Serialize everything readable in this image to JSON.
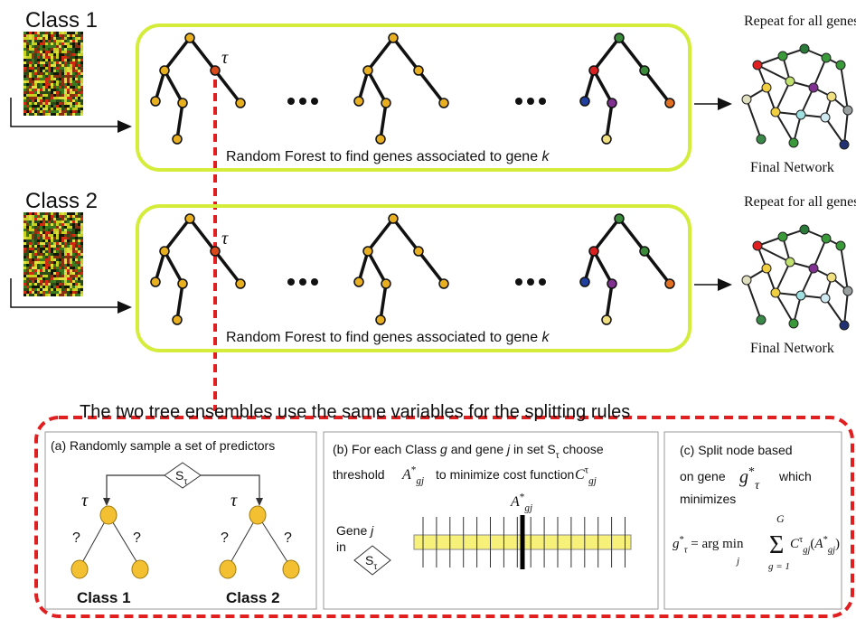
{
  "classes": [
    {
      "label": "Class 1",
      "tau": "τ",
      "caption": "Random Forest to find genes associated to gene ",
      "caption_var": "k",
      "repeat": "Repeat for all genes",
      "network": "Final Network"
    },
    {
      "label": "Class 2",
      "tau": "τ",
      "caption": "Random Forest to find genes associated to gene ",
      "caption_var": "k",
      "repeat": "Repeat for all genes",
      "network": "Final Network"
    }
  ],
  "shared_note": "The two tree ensembles use the same variables for the splitting rules",
  "panel_a": {
    "title": "(a) Randomly sample a set of predictors",
    "set_symbol": "S",
    "set_sub": "τ",
    "tau": "τ",
    "question": "?",
    "class_labels": [
      "Class 1",
      "Class 2"
    ]
  },
  "panel_b": {
    "intro": "(b) For each Class ",
    "g": "g",
    "and_gene": " and gene ",
    "j": "j",
    "in_set": " in set ",
    "set_symbol": "S",
    "set_sub": "τ",
    "choose": " choose",
    "threshold": "threshold",
    "A": "A",
    "star": "*",
    "gj": "gj",
    "minimize": "to minimize cost function",
    "C": "C",
    "tau": "τ",
    "gene": "Gene ",
    "in": "in"
  },
  "panel_c": {
    "line1": "(c) Split node based",
    "on_gene": "on gene",
    "g": "g",
    "star": "*",
    "tau": "τ",
    "which": "which",
    "minimizes": "minimizes",
    "eq": " = arg min",
    "j": "j",
    "sigma": "Σ",
    "upper": "G",
    "lower": "g = 1",
    "C": "C",
    "gj": "gj",
    "open": "(",
    "A": "A",
    "close": ")"
  }
}
